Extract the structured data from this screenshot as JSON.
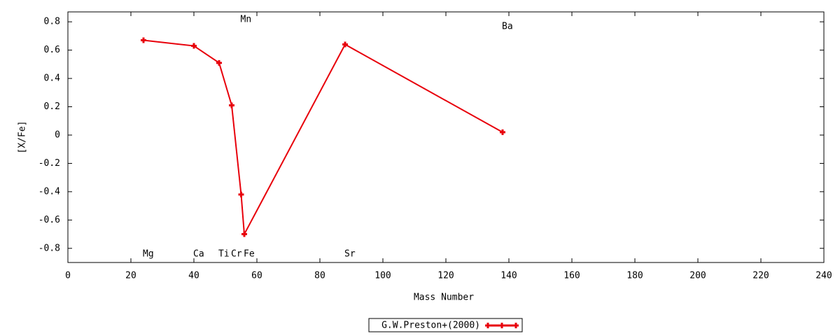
{
  "chart_data": {
    "type": "line",
    "x_label": "Mass Number",
    "y_label": "[X/Fe]",
    "x": [
      24,
      40,
      48,
      52,
      55,
      56,
      88,
      138
    ],
    "point_labels": [
      "Mg",
      "Ca",
      "Ti",
      "Cr",
      "Mn",
      "Fe",
      "Sr",
      "Ba"
    ],
    "series": [
      {
        "name": "G.W.Preston+(2000)",
        "color": "#e8000b",
        "values": [
          0.67,
          0.63,
          0.51,
          0.21,
          -0.42,
          -0.7,
          0.64,
          0.02
        ]
      }
    ],
    "xlim": [
      0,
      240
    ],
    "xticks": [
      0,
      20,
      40,
      60,
      80,
      100,
      120,
      140,
      160,
      180,
      200,
      220,
      240
    ],
    "ylim": [
      -0.9,
      0.87
    ],
    "yticks": [
      {
        "value": -0.8,
        "label": "-0.8"
      },
      {
        "value": -0.6,
        "label": "-0.6"
      },
      {
        "value": -0.4,
        "label": "-0.4"
      },
      {
        "value": -0.2,
        "label": "-0.2"
      },
      0,
      0.2,
      0.4,
      0.6,
      0.8
    ],
    "grid": false
  }
}
